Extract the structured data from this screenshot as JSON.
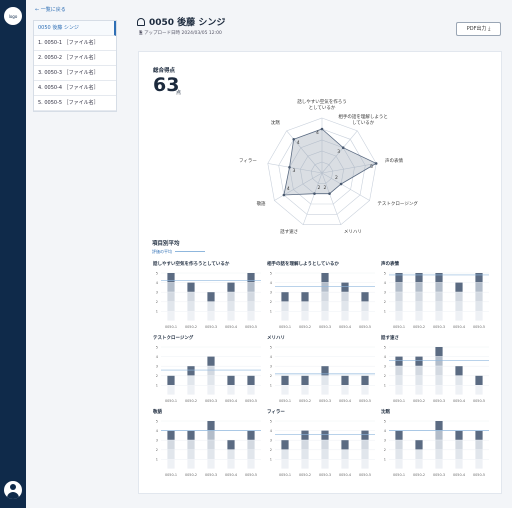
{
  "sidebar": {
    "logo": "logo"
  },
  "back_link": "← 一覧に戻る",
  "file_list": [
    {
      "label": "0050 後藤 シンジ",
      "active": true
    },
    {
      "label": "1. 0050-1 ［ファイル名］"
    },
    {
      "label": "2. 0050-2 ［ファイル名］"
    },
    {
      "label": "3. 0050-3 ［ファイル名］"
    },
    {
      "label": "4. 0050-4 ［ファイル名］"
    },
    {
      "label": "5. 0050-5 ［ファイル名］"
    }
  ],
  "header": {
    "title": "0050 後藤 シンジ",
    "upload_label": "アップロード日時",
    "upload_date": "2024/03/05 12:00",
    "pdf_button": "PDF出力"
  },
  "summary": {
    "label": "総合得点",
    "score": "63",
    "unit": "点"
  },
  "radar": {
    "axes": [
      "話しやすい空気を作ろうとしているか",
      "相手の話を理解しようとしているか",
      "声の表情",
      "テストクロージング",
      "メリハリ",
      "話す速さ",
      "敬語",
      "フィラー",
      "沈黙"
    ],
    "values": [
      4,
      3,
      5,
      2,
      2,
      2,
      4,
      3,
      4
    ],
    "max": 5
  },
  "items_section": {
    "title": "項目別平均",
    "legend": "評価の平均"
  },
  "chart_data": [
    {
      "type": "bar",
      "title": "話しやすい空気を作ろうとしているか",
      "categories": [
        "0050-1",
        "0050-2",
        "0050-3",
        "0050-4",
        "0050-5"
      ],
      "values": [
        5,
        4,
        3,
        4,
        5
      ],
      "average": 4.2,
      "ylim": [
        0,
        5
      ]
    },
    {
      "type": "bar",
      "title": "相手の話を理解しようとしているか",
      "categories": [
        "0050-1",
        "0050-2",
        "0050-3",
        "0050-4",
        "0050-5"
      ],
      "values": [
        3,
        3,
        5,
        4,
        3
      ],
      "average": 3.6,
      "ylim": [
        0,
        5
      ]
    },
    {
      "type": "bar",
      "title": "声の表情",
      "categories": [
        "0050-1",
        "0050-2",
        "0050-3",
        "0050-4",
        "0050-5"
      ],
      "values": [
        5,
        5,
        5,
        4,
        5
      ],
      "average": 4.8,
      "ylim": [
        0,
        5
      ]
    },
    {
      "type": "bar",
      "title": "テストクロージング",
      "categories": [
        "0050-1",
        "0050-2",
        "0050-3",
        "0050-4",
        "0050-5"
      ],
      "values": [
        2,
        3,
        4,
        2,
        2
      ],
      "average": 2.6,
      "ylim": [
        0,
        5
      ]
    },
    {
      "type": "bar",
      "title": "メリハリ",
      "categories": [
        "0050-1",
        "0050-2",
        "0050-3",
        "0050-4",
        "0050-5"
      ],
      "values": [
        2,
        2,
        3,
        2,
        2
      ],
      "average": 2.2,
      "ylim": [
        0,
        5
      ]
    },
    {
      "type": "bar",
      "title": "話す速さ",
      "categories": [
        "0050-1",
        "0050-2",
        "0050-3",
        "0050-4",
        "0050-5"
      ],
      "values": [
        4,
        4,
        5,
        3,
        2
      ],
      "average": 3.6,
      "ylim": [
        0,
        5
      ]
    },
    {
      "type": "bar",
      "title": "敬語",
      "categories": [
        "0050-1",
        "0050-2",
        "0050-3",
        "0050-4",
        "0050-5"
      ],
      "values": [
        4,
        4,
        5,
        3,
        4
      ],
      "average": 4,
      "ylim": [
        0,
        5
      ]
    },
    {
      "type": "bar",
      "title": "フィラー",
      "categories": [
        "0050-1",
        "0050-2",
        "0050-3",
        "0050-4",
        "0050-5"
      ],
      "values": [
        3,
        4,
        4,
        3,
        4
      ],
      "average": 3.6,
      "ylim": [
        0,
        5
      ]
    },
    {
      "type": "bar",
      "title": "沈黙",
      "categories": [
        "0050-1",
        "0050-2",
        "0050-3",
        "0050-4",
        "0050-5"
      ],
      "values": [
        4,
        3,
        5,
        4,
        4
      ],
      "average": 4,
      "ylim": [
        0,
        5
      ]
    }
  ],
  "colors": {
    "rail": "#0f2a4a",
    "accent": "#2f6fb5",
    "avg_line": "#8fb7dd",
    "bar_top": "#5b6b82"
  }
}
